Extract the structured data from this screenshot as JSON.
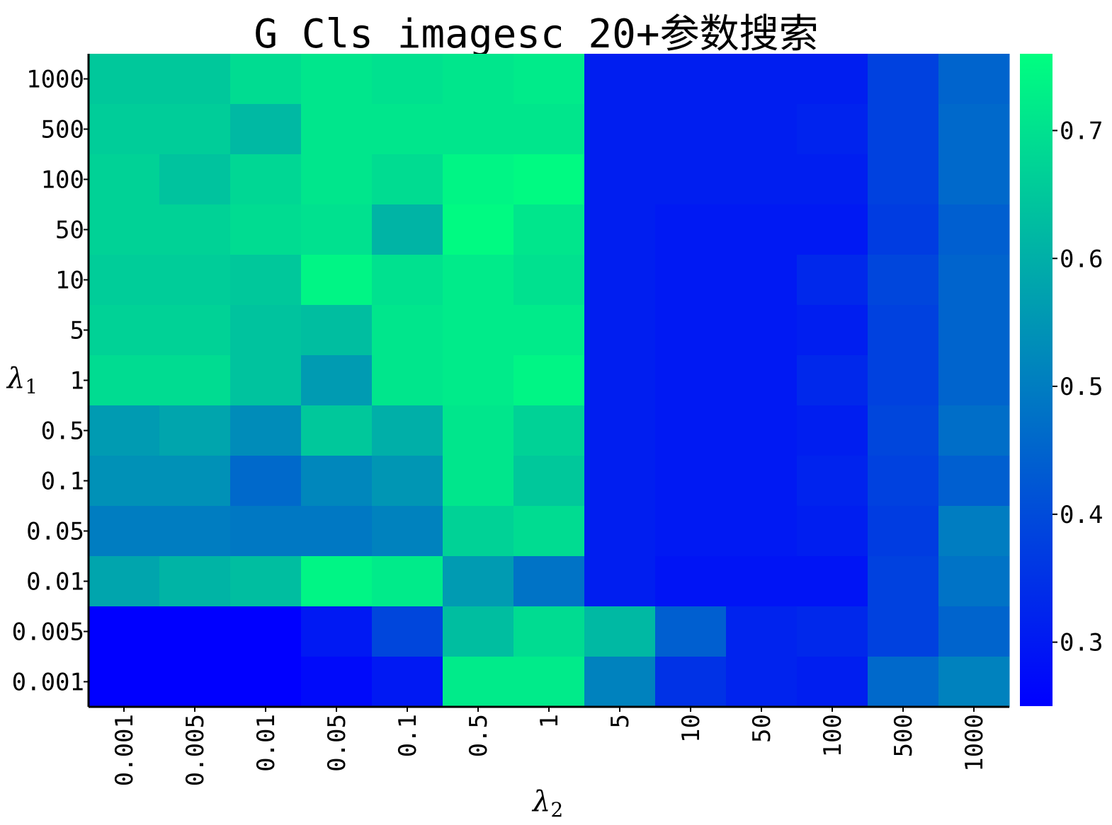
{
  "chart_data": {
    "type": "heatmap",
    "title": "G_Cls_imagesc_20+参数搜索",
    "xlabel": "λ2",
    "xlabel_main": "λ",
    "xlabel_sub": "2",
    "ylabel": "λ1",
    "ylabel_main": "λ",
    "ylabel_sub": "1",
    "x_categories": [
      "0.001",
      "0.005",
      "0.01",
      "0.05",
      "0.1",
      "0.5",
      "1",
      "5",
      "10",
      "50",
      "100",
      "500",
      "1000"
    ],
    "y_categories": [
      "1000",
      "500",
      "100",
      "50",
      "10",
      "5",
      "1",
      "0.5",
      "0.1",
      "0.05",
      "0.01",
      "0.005",
      "0.001"
    ],
    "colormap": "winter",
    "color_low": "#0000ff",
    "color_high": "#00ff80",
    "clim": [
      0.25,
      0.76
    ],
    "colorbar_ticks": [
      "0.3",
      "0.4",
      "0.5",
      "0.6",
      "0.7"
    ],
    "colorbar_tick_values": [
      0.3,
      0.4,
      0.5,
      0.6,
      0.7
    ],
    "values": [
      [
        0.65,
        0.65,
        0.69,
        0.71,
        0.7,
        0.71,
        0.72,
        0.31,
        0.31,
        0.31,
        0.31,
        0.38,
        0.45
      ],
      [
        0.66,
        0.66,
        0.62,
        0.71,
        0.71,
        0.71,
        0.71,
        0.31,
        0.31,
        0.31,
        0.32,
        0.38,
        0.46
      ],
      [
        0.67,
        0.64,
        0.68,
        0.71,
        0.69,
        0.74,
        0.75,
        0.31,
        0.31,
        0.31,
        0.31,
        0.38,
        0.46
      ],
      [
        0.67,
        0.67,
        0.69,
        0.7,
        0.61,
        0.75,
        0.71,
        0.31,
        0.3,
        0.3,
        0.3,
        0.37,
        0.44
      ],
      [
        0.66,
        0.66,
        0.65,
        0.74,
        0.7,
        0.72,
        0.7,
        0.31,
        0.3,
        0.3,
        0.33,
        0.39,
        0.45
      ],
      [
        0.67,
        0.67,
        0.64,
        0.63,
        0.71,
        0.72,
        0.72,
        0.31,
        0.3,
        0.3,
        0.31,
        0.38,
        0.45
      ],
      [
        0.69,
        0.69,
        0.64,
        0.56,
        0.71,
        0.72,
        0.74,
        0.31,
        0.3,
        0.3,
        0.33,
        0.38,
        0.45
      ],
      [
        0.56,
        0.58,
        0.53,
        0.65,
        0.6,
        0.71,
        0.67,
        0.31,
        0.3,
        0.3,
        0.31,
        0.39,
        0.47
      ],
      [
        0.54,
        0.54,
        0.46,
        0.52,
        0.55,
        0.71,
        0.65,
        0.31,
        0.3,
        0.3,
        0.32,
        0.38,
        0.44
      ],
      [
        0.5,
        0.5,
        0.49,
        0.49,
        0.51,
        0.67,
        0.69,
        0.31,
        0.3,
        0.3,
        0.31,
        0.37,
        0.5
      ],
      [
        0.58,
        0.61,
        0.63,
        0.74,
        0.72,
        0.56,
        0.48,
        0.31,
        0.29,
        0.29,
        0.29,
        0.38,
        0.48
      ],
      [
        0.25,
        0.25,
        0.25,
        0.3,
        0.39,
        0.63,
        0.69,
        0.62,
        0.44,
        0.32,
        0.33,
        0.38,
        0.45
      ],
      [
        0.25,
        0.25,
        0.25,
        0.27,
        0.3,
        0.72,
        0.72,
        0.51,
        0.35,
        0.32,
        0.31,
        0.46,
        0.51
      ]
    ]
  }
}
